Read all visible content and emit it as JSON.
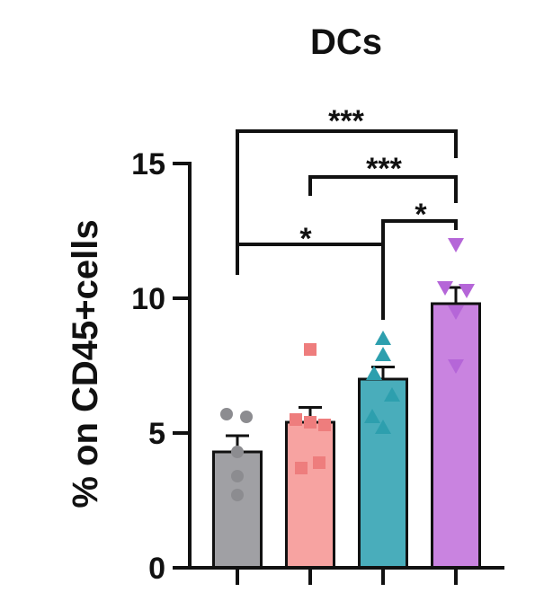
{
  "chart_data": {
    "type": "bar",
    "title": "DCs",
    "xlabel": "",
    "ylabel": "% on CD45+cells",
    "ylim": [
      0,
      15
    ],
    "yticks": [
      0,
      5,
      10,
      15
    ],
    "categories": [
      "",
      "",
      "",
      ""
    ],
    "values": [
      4.3,
      5.4,
      7.0,
      9.8
    ],
    "errors": [
      0.6,
      0.55,
      0.45,
      0.6
    ],
    "colors": [
      "#a0a0a4",
      "#f7a3a1",
      "#49adbb",
      "#c983e0"
    ],
    "point_colors": [
      "#8c8c90",
      "#ee7d7d",
      "#2d9fae",
      "#b566d8"
    ],
    "markers": [
      "circle",
      "square",
      "triangle-up",
      "triangle-down"
    ],
    "points": [
      [
        5.7,
        5.6,
        4.3,
        3.4,
        2.7
      ],
      [
        8.1,
        5.5,
        5.4,
        5.3,
        3.9,
        3.7
      ],
      [
        8.5,
        7.9,
        7.2,
        6.4,
        5.6,
        5.2
      ],
      [
        12.0,
        10.4,
        10.3,
        9.5,
        7.5
      ]
    ],
    "significance": [
      {
        "from": 0,
        "to": 3,
        "label": "***"
      },
      {
        "from": 1,
        "to": 3,
        "label": "***"
      },
      {
        "from": 2,
        "to": 3,
        "label": "*"
      },
      {
        "from": 0,
        "to": 2,
        "label": "*"
      }
    ]
  }
}
